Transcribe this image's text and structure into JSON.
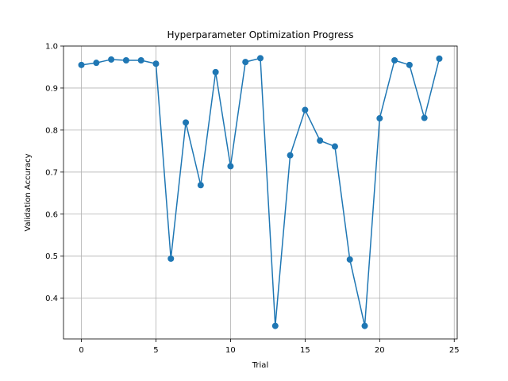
{
  "chart_data": {
    "type": "line",
    "title": "Hyperparameter Optimization Progress",
    "xlabel": "Trial",
    "ylabel": "Validation Accuracy",
    "xlim": [
      -1.2,
      25.2
    ],
    "ylim": [
      0.303,
      1.0
    ],
    "xticks": [
      0,
      5,
      10,
      15,
      20,
      25
    ],
    "yticks": [
      0.4,
      0.5,
      0.6,
      0.7,
      0.8,
      0.9,
      1.0
    ],
    "xtick_labels": [
      "0",
      "5",
      "10",
      "15",
      "20",
      "25"
    ],
    "ytick_labels": [
      "0.4",
      "0.5",
      "0.6",
      "0.7",
      "0.8",
      "0.9",
      "1.0"
    ],
    "grid": true,
    "line_color": "#1f77b4",
    "marker": "circle",
    "x": [
      0,
      1,
      2,
      3,
      4,
      5,
      6,
      7,
      8,
      9,
      10,
      11,
      12,
      13,
      14,
      15,
      16,
      17,
      18,
      19,
      20,
      21,
      22,
      23,
      24
    ],
    "y": [
      0.955,
      0.96,
      0.968,
      0.966,
      0.966,
      0.958,
      0.494,
      0.818,
      0.669,
      0.938,
      0.714,
      0.962,
      0.971,
      0.334,
      0.74,
      0.848,
      0.775,
      0.761,
      0.492,
      0.334,
      0.828,
      0.966,
      0.955,
      0.829,
      0.97
    ]
  }
}
